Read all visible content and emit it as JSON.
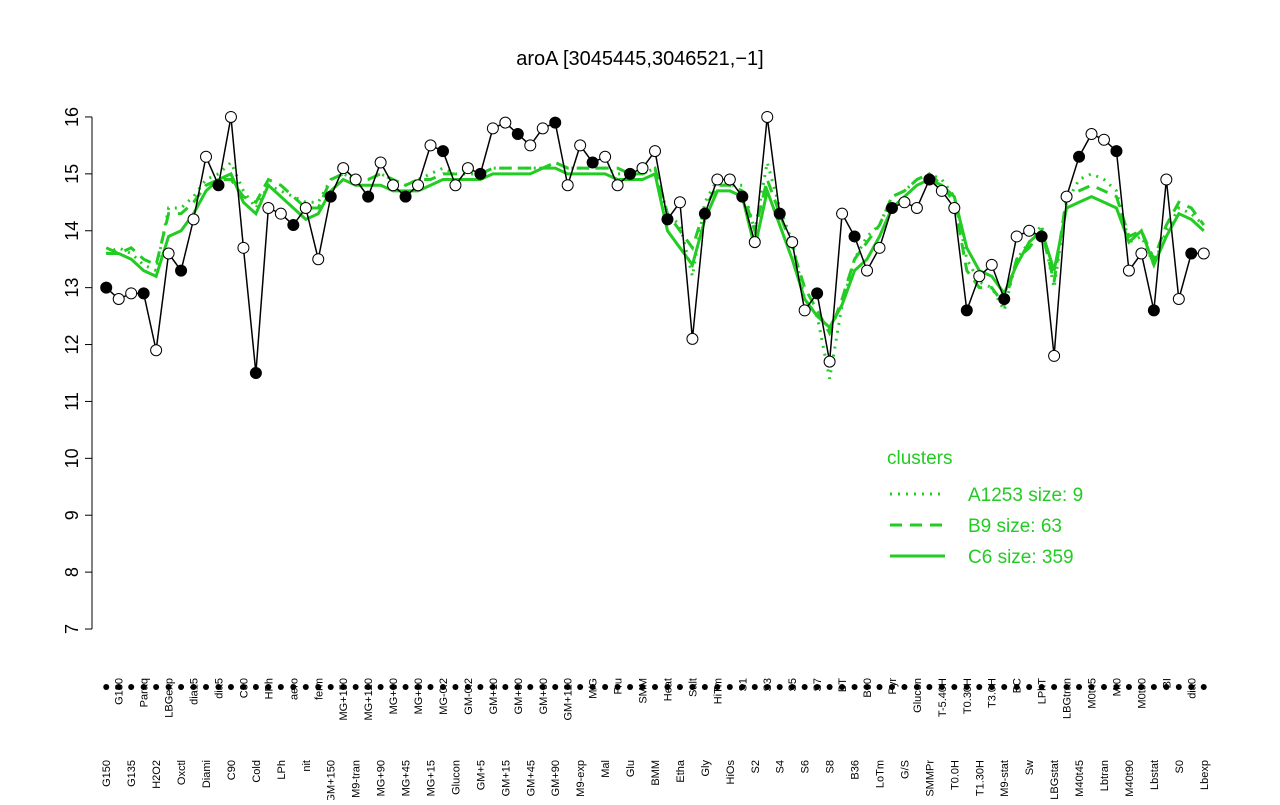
{
  "chart_data": {
    "type": "line",
    "title": "aroA [3045445,3046521,−1]",
    "categories": [
      "G150",
      "G180",
      "G135",
      "Paraq",
      "H2O2",
      "LBGexp",
      "Oxctl",
      "dia15",
      "Diami",
      "dia5",
      "C90",
      "C30",
      "Cold",
      "HPh",
      "LPh",
      "aero",
      "nit",
      "ferm",
      "GM+150",
      "MG+150",
      "M9-tran",
      "MG+120",
      "MG+90",
      "MG+60",
      "MG+45",
      "MG+30",
      "MG+15",
      "MG-0.2",
      "Glucon",
      "GM-0.2",
      "GM+5",
      "GM+10",
      "GM+15",
      "GM+30",
      "GM+45",
      "GM+60",
      "GM+90",
      "GM+120",
      "M9-exp",
      "M/G",
      "Mal",
      "Fru",
      "Glu",
      "SMM",
      "BMM",
      "Heat",
      "Etha",
      "Salt",
      "Gly",
      "HiTm",
      "HiOs",
      "S1",
      "S2",
      "S3",
      "S4",
      "S5",
      "S6",
      "S7",
      "S8",
      "BT",
      "B36",
      "B60",
      "LoTm",
      "Pyr",
      "G/S",
      "Glucon",
      "SMMPr",
      "T-5.40H",
      "T0.0H",
      "T0.30H",
      "T1.30H",
      "T3.0H",
      "M9-stat",
      "BC",
      "Sw",
      "LPhT",
      "LBGstat",
      "LBGtran",
      "M40t45",
      "M0t45",
      "Lbtran",
      "Mt0",
      "M40t90",
      "M0t90",
      "Lbstat",
      "BI",
      "S0",
      "dia0",
      "Lbexp"
    ],
    "values": [
      13.0,
      12.8,
      12.9,
      12.9,
      11.9,
      13.6,
      13.3,
      14.2,
      15.3,
      14.8,
      16.0,
      13.7,
      11.5,
      14.4,
      14.3,
      14.1,
      14.4,
      13.5,
      14.6,
      15.1,
      14.9,
      14.6,
      15.2,
      14.8,
      14.6,
      14.8,
      15.5,
      15.4,
      14.8,
      15.1,
      15.0,
      15.8,
      15.9,
      15.7,
      15.5,
      15.8,
      15.9,
      14.8,
      15.5,
      15.2,
      15.3,
      14.8,
      15.0,
      15.1,
      15.4,
      14.2,
      14.5,
      12.1,
      14.3,
      14.9,
      14.9,
      14.6,
      13.8,
      16.0,
      14.3,
      13.8,
      12.6,
      12.9,
      11.7,
      14.3,
      13.9,
      13.3,
      13.7,
      14.4,
      14.5,
      14.4,
      14.9,
      14.7,
      14.4,
      12.6,
      13.2,
      13.4,
      12.8,
      13.9,
      14.0,
      13.9,
      11.8,
      14.6,
      15.3,
      15.7,
      15.6,
      15.4,
      13.3,
      13.6,
      12.6,
      14.9,
      12.8,
      13.6,
      13.6
    ],
    "series": [
      {
        "name": "A1253 size: 9",
        "color": "#22cc22",
        "style": "dotted",
        "values": [
          13.6,
          13.7,
          13.6,
          13.4,
          13.3,
          14.4,
          14.4,
          14.6,
          14.9,
          15.0,
          15.2,
          14.7,
          14.4,
          14.8,
          14.7,
          14.6,
          14.5,
          14.5,
          14.9,
          15.0,
          14.9,
          14.9,
          15.0,
          14.9,
          14.8,
          14.9,
          15.0,
          15.1,
          15.0,
          15.0,
          15.0,
          15.1,
          15.1,
          15.1,
          15.1,
          15.1,
          15.2,
          15.1,
          15.1,
          15.1,
          15.1,
          15.0,
          15.0,
          15.0,
          15.1,
          14.3,
          14.1,
          13.2,
          14.5,
          14.9,
          14.8,
          14.8,
          14.0,
          15.2,
          14.4,
          13.8,
          12.8,
          12.5,
          11.4,
          12.7,
          13.5,
          13.9,
          14.1,
          14.6,
          14.7,
          14.9,
          15.0,
          14.9,
          14.6,
          13.5,
          13.1,
          13.0,
          12.6,
          13.5,
          13.8,
          14.1,
          13.0,
          14.5,
          14.9,
          15.0,
          14.9,
          14.7,
          13.8,
          13.9,
          13.4,
          14.0,
          14.4,
          14.3,
          14.1
        ]
      },
      {
        "name": "B9 size: 63",
        "color": "#22cc22",
        "style": "dashed",
        "values": [
          13.7,
          13.6,
          13.7,
          13.5,
          13.4,
          14.3,
          14.3,
          14.5,
          14.8,
          14.9,
          14.9,
          14.6,
          14.5,
          14.9,
          14.8,
          14.6,
          14.4,
          14.4,
          14.9,
          15.0,
          14.9,
          14.9,
          15.0,
          14.9,
          14.8,
          14.9,
          14.9,
          15.0,
          15.0,
          15.1,
          15.0,
          15.1,
          15.1,
          15.1,
          15.1,
          15.1,
          15.2,
          15.1,
          15.1,
          15.1,
          15.1,
          15.1,
          15.0,
          15.0,
          15.1,
          14.3,
          14.0,
          13.7,
          14.4,
          14.8,
          14.8,
          14.7,
          14.0,
          14.9,
          14.3,
          13.7,
          13.0,
          12.6,
          12.2,
          12.8,
          13.5,
          13.8,
          14.1,
          14.6,
          14.7,
          14.9,
          15.0,
          14.8,
          14.5,
          13.3,
          13.0,
          13.0,
          12.7,
          13.5,
          13.7,
          14.0,
          13.1,
          14.6,
          14.7,
          14.8,
          14.7,
          14.6,
          13.9,
          14.0,
          13.5,
          14.1,
          14.5,
          14.4,
          14.1
        ]
      },
      {
        "name": "C6 size: 359",
        "color": "#22cc22",
        "style": "solid",
        "values": [
          13.6,
          13.6,
          13.5,
          13.3,
          13.2,
          13.9,
          14.0,
          14.3,
          14.7,
          14.9,
          15.0,
          14.5,
          14.3,
          14.8,
          14.6,
          14.4,
          14.2,
          14.3,
          14.7,
          14.9,
          14.8,
          14.8,
          14.8,
          14.7,
          14.7,
          14.7,
          14.8,
          14.9,
          14.9,
          14.9,
          14.9,
          15.0,
          15.0,
          15.0,
          15.0,
          15.1,
          15.1,
          15.0,
          15.0,
          15.0,
          15.0,
          14.9,
          14.9,
          14.9,
          15.0,
          14.0,
          13.7,
          13.4,
          14.2,
          14.7,
          14.7,
          14.6,
          13.7,
          14.7,
          14.1,
          13.5,
          12.8,
          12.5,
          12.3,
          12.7,
          13.3,
          13.5,
          13.9,
          14.4,
          14.6,
          14.8,
          14.9,
          14.8,
          14.6,
          13.7,
          13.3,
          13.2,
          12.9,
          13.4,
          13.8,
          14.0,
          13.3,
          14.4,
          14.5,
          14.6,
          14.5,
          14.4,
          13.8,
          14.0,
          13.4,
          13.9,
          14.3,
          14.2,
          14.0
        ]
      }
    ],
    "legend_title": "clusters",
    "ylim": [
      6.8,
      16.4
    ],
    "yticks": [
      7,
      8,
      9,
      10,
      11,
      12,
      13,
      14,
      15,
      16
    ]
  }
}
